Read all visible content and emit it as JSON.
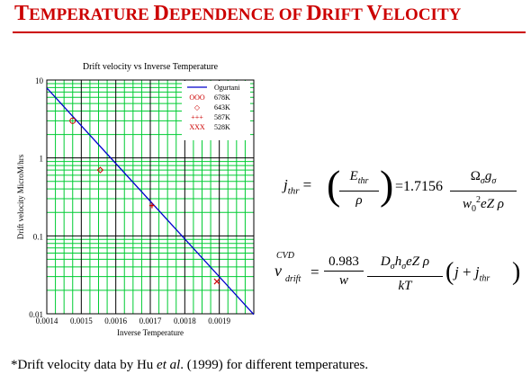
{
  "slide": {
    "title_parts": [
      {
        "cap": "T",
        "rest": "EMPERATURE "
      },
      {
        "cap": "D",
        "rest": "EPENDENCE "
      },
      {
        "cap": "",
        "rest": "OF "
      },
      {
        "cap": "D",
        "rest": "RIFT "
      },
      {
        "cap": "V",
        "rest": "ELOCITY"
      }
    ],
    "title_color": "#cc0000",
    "footnote": {
      "prefix": "*Drift velocity data by Hu ",
      "italic": "et al",
      "suffix": ". (1999) for different temperatures."
    }
  },
  "chart_data": {
    "type": "scatter",
    "title": "Drift velocity vs Inverse Temperature",
    "xlabel": "Inverse Temperature",
    "ylabel": "Drift velocity  MicroM/hrs",
    "xlim": [
      0.0014,
      0.002
    ],
    "ylim": [
      0.01,
      10
    ],
    "yscale": "log",
    "x_ticks": [
      "0.0014",
      "0.0015",
      "0.0016",
      "0.0017",
      "0.0018",
      "0.0019"
    ],
    "x_tick_values": [
      0.0014,
      0.0015,
      0.0016,
      0.0017,
      0.0018,
      0.0019
    ],
    "y_ticks": [
      "10",
      "1",
      "0.1",
      "0.01"
    ],
    "y_tick_values": [
      10,
      1,
      0.1,
      0.01
    ],
    "grid": true,
    "grid_color": "#00cc33",
    "legend_position": "top-right",
    "line": {
      "name": "Ogurtani",
      "color": "#0000cc",
      "x": [
        0.0014,
        0.002
      ],
      "y": [
        7.9,
        0.0098
      ]
    },
    "series": [
      {
        "name": "678K",
        "marker_text": "OOO",
        "marker": "circle",
        "color": "#cc0000",
        "x": [
          0.001475
        ],
        "y": [
          3.0
        ]
      },
      {
        "name": "643K",
        "marker_text": "◇",
        "marker": "diamond",
        "color": "#cc0000",
        "x": [
          0.001555
        ],
        "y": [
          0.7
        ]
      },
      {
        "name": "587K",
        "marker_text": "+++",
        "marker": "plus",
        "color": "#cc0000",
        "x": [
          0.001705
        ],
        "y": [
          0.245
        ]
      },
      {
        "name": "528K",
        "marker_text": "XXX",
        "marker": "x",
        "color": "#cc0000",
        "x": [
          0.001893
        ],
        "y": [
          0.026
        ]
      }
    ]
  },
  "equations": {
    "eq1": {
      "lhs_base": "j",
      "lhs_sub": "thr",
      "E": "E",
      "E_sub": "thr",
      "rho": "ρ",
      "coef": "=1.7156",
      "num_Omega": "Ω",
      "num_sub1": "σ",
      "num_g": "g",
      "num_sub2": "σ",
      "den_w": "w",
      "den_sub": "0",
      "den_sup": "2",
      "den_rest": "eZ ρ"
    },
    "eq2": {
      "lhs_base": "v",
      "lhs_sup": "CVD",
      "lhs_sub": "drift",
      "f1_num": "0.983",
      "f1_den": "w",
      "num_D": "D",
      "num_sub1": "σ",
      "num_h": "h",
      "num_sub2": "σ",
      "num_rest": "eZ ρ",
      "den2": "kT",
      "paren_j": "j",
      "paren_plus": " + ",
      "paren_jthr": "j",
      "paren_jthr_sub": "thr"
    }
  }
}
